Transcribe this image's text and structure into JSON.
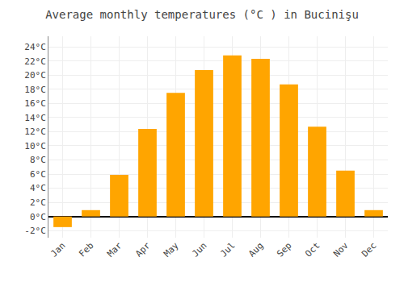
{
  "chart_data": {
    "type": "bar",
    "title": "Average monthly temperatures (°C ) in Bucinişu",
    "categories": [
      "Jan",
      "Feb",
      "Mar",
      "Apr",
      "May",
      "Jun",
      "Jul",
      "Aug",
      "Sep",
      "Oct",
      "Nov",
      "Dec"
    ],
    "values": [
      -1.5,
      0.9,
      5.9,
      12.4,
      17.5,
      20.7,
      22.8,
      22.3,
      18.7,
      12.7,
      6.5,
      0.9
    ],
    "color": "#FFA500",
    "ylim": [
      -3,
      25.5
    ],
    "yticks": [
      {
        "value": -2,
        "label": "-2°C"
      },
      {
        "value": 0,
        "label": "0°C"
      },
      {
        "value": 2,
        "label": "2°C"
      },
      {
        "value": 4,
        "label": "4°C"
      },
      {
        "value": 6,
        "label": "6°C"
      },
      {
        "value": 8,
        "label": "8°C"
      },
      {
        "value": 10,
        "label": "10°C"
      },
      {
        "value": 12,
        "label": "12°C"
      },
      {
        "value": 14,
        "label": "14°C"
      },
      {
        "value": 16,
        "label": "16°C"
      },
      {
        "value": 18,
        "label": "18°C"
      },
      {
        "value": 20,
        "label": "20°C"
      },
      {
        "value": 22,
        "label": "22°C"
      },
      {
        "value": 24,
        "label": "24°C"
      }
    ],
    "grid": true
  }
}
